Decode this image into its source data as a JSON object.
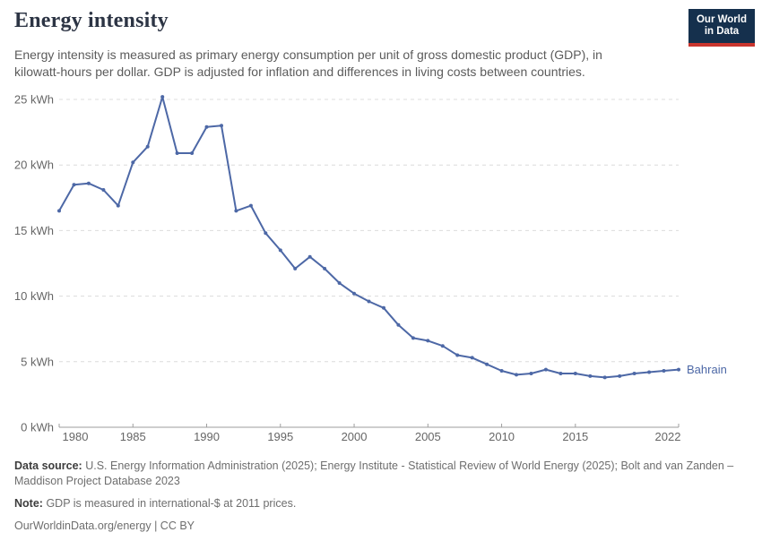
{
  "header": {
    "title": "Energy intensity",
    "subtitle": "Energy intensity is measured as primary energy consumption per unit of gross domestic product (GDP), in kilowatt-hours per dollar. GDP is adjusted for inflation and differences in living costs between countries.",
    "logo_line1": "Our World",
    "logo_line2": "in Data",
    "logo_bg_color": "#15304d",
    "logo_accent_color": "#c9352e"
  },
  "chart_data": {
    "type": "line",
    "title": "Energy intensity",
    "unit": "kWh",
    "grid": "horizontal dashed",
    "legend_position": "end-of-line label",
    "ylim": [
      0,
      25
    ],
    "yticks": [
      0,
      5,
      10,
      15,
      20,
      25
    ],
    "ytick_suffix": " kWh",
    "xticks": [
      1980,
      1985,
      1990,
      1995,
      2000,
      2005,
      2010,
      2015,
      2022
    ],
    "x": [
      1980,
      1981,
      1982,
      1983,
      1984,
      1985,
      1986,
      1987,
      1988,
      1989,
      1990,
      1991,
      1992,
      1993,
      1994,
      1995,
      1996,
      1997,
      1998,
      1999,
      2000,
      2001,
      2002,
      2003,
      2004,
      2005,
      2006,
      2007,
      2008,
      2009,
      2010,
      2011,
      2012,
      2013,
      2014,
      2015,
      2016,
      2017,
      2018,
      2019,
      2020,
      2021,
      2022
    ],
    "series": [
      {
        "name": "Bahrain",
        "color": "#4d68a6",
        "values": [
          16.5,
          18.5,
          18.6,
          18.1,
          16.9,
          20.2,
          21.4,
          25.2,
          20.9,
          20.9,
          22.9,
          23.0,
          16.5,
          16.9,
          14.8,
          13.5,
          12.1,
          13.0,
          12.1,
          11.0,
          10.2,
          9.6,
          9.1,
          7.8,
          6.8,
          6.6,
          6.2,
          5.5,
          5.3,
          4.8,
          4.3,
          4.0,
          4.1,
          4.4,
          4.1,
          4.1,
          3.9,
          3.8,
          3.9,
          4.1,
          4.2,
          4.3,
          4.4
        ]
      }
    ],
    "axis_color": "#9e9e9e",
    "gridline_color": "#dcdcdc",
    "tick_label_color": "#666666"
  },
  "footer": {
    "source_label": "Data source:",
    "source_text": "U.S. Energy Information Administration (2025); Energy Institute - Statistical Review of World Energy (2025); Bolt and van Zanden – Maddison Project Database 2023",
    "note_label": "Note:",
    "note_text": "GDP is measured in international-$ at 2011 prices.",
    "license": "OurWorldinData.org/energy | CC BY"
  }
}
